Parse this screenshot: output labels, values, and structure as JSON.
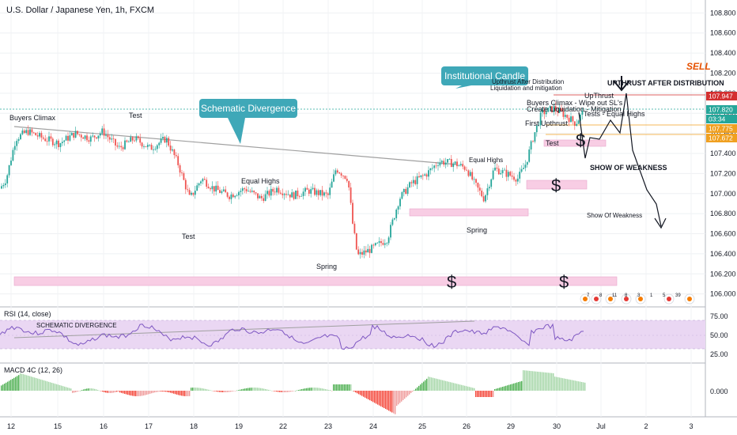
{
  "chart_data": {
    "type": "candlestick",
    "title": "U.S. Dollar / Japanese Yen, 1h, FXCM",
    "x_ticks": [
      "12",
      "15",
      "16",
      "17",
      "18",
      "19",
      "22",
      "23",
      "24",
      "25",
      "26",
      "29",
      "30",
      "Jul",
      "2",
      "3"
    ],
    "y_ticks": [
      "108.800",
      "108.600",
      "108.400",
      "108.200",
      "108.000",
      "107.800",
      "107.600",
      "107.400",
      "107.200",
      "107.000",
      "106.800",
      "106.600",
      "106.400",
      "106.200",
      "106.000"
    ],
    "ylim": [
      105.95,
      108.85
    ],
    "price_labels": [
      {
        "value": "107.947",
        "color": "#d32f2f"
      },
      {
        "value": "107.820",
        "color": "#26a69a"
      },
      {
        "value": "03:34",
        "color": "#26a69a"
      },
      {
        "value": "107.775",
        "color": "#f0a020"
      },
      {
        "value": "107.672",
        "color": "#f0a020"
      }
    ],
    "annotations": {
      "buyers_climax": "Buyers Climax",
      "test_top": "Test",
      "schematic_divergence": "Schematic Divergence",
      "equal_highs_mid": "Equal Highs",
      "test_low": "Test",
      "spring_left": "Spring",
      "institutional_candle": "Institutional Candle",
      "upthrust_after_distribution_small_1": "Upthrust After Distribution",
      "upthrust_after_distribution_small_2": "Liquidation and mitigation",
      "equal_highs_right": "Equal Highs",
      "spring_right": "Spring",
      "buyers_climax_wipe": "Buyers Climax - Wipe out SL's",
      "create_liquidation": "Create Liquidation - Mitigation",
      "upthrust": "UpThrust",
      "tests_equal_highs": "Tests - Equal Highs",
      "first_upthrust": "First Upthrust",
      "test_right": "Test",
      "show_of_weakness_caps": "SHOW OF WEAKNESS",
      "show_of_weakness": "Show Of Weakness",
      "sell": "SELL",
      "utad_caps": "UPTHRUST AFTER DISTRIBUTION",
      "dollar": "$"
    },
    "rsi": {
      "title": "RSI (14, close)",
      "y_ticks": [
        "75.00",
        "50.00",
        "25.00"
      ],
      "ylim": [
        15,
        85
      ],
      "divergence_label": "SCHEMATIC DIVERGENCE"
    },
    "macd": {
      "title": "MACD 4C (12, 26)",
      "y_ticks": [
        "0.000"
      ]
    },
    "event_badges": [
      "7",
      "8",
      "11",
      "8",
      "3",
      "1",
      "5",
      "39"
    ],
    "colors": {
      "up": "#26a69a",
      "down": "#ef5350",
      "zone": "#f8cde4",
      "rsi_band": "#ead7f3",
      "callout": "#3fa8b8",
      "sell": "#e65100"
    }
  }
}
